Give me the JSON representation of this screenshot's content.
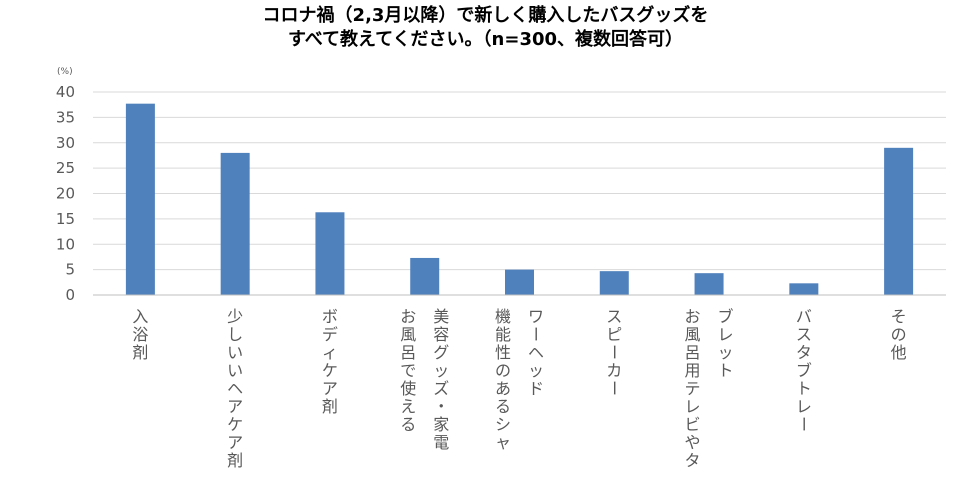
{
  "chart_data": {
    "type": "bar",
    "title_lines": [
      "コロナ禍（2,3月以降）で新しく購入したバスグッズを",
      "すべて教えてください。（n=300、複数回答可）"
    ],
    "unit_label": "(%)",
    "ylim": [
      0,
      40
    ],
    "yticks": [
      0,
      5,
      10,
      15,
      20,
      25,
      30,
      35,
      40
    ],
    "grid": true,
    "bar_color": "#4F81BD",
    "categories": [
      [
        "入浴剤"
      ],
      [
        "少しいいヘアケア剤"
      ],
      [
        "ボディケア剤"
      ],
      [
        "美容グッズ・家電",
        "お風呂で使える"
      ],
      [
        "ワーヘッド",
        "機能性のあるシャ"
      ],
      [
        "スピーカー"
      ],
      [
        "ブレット",
        "お風呂用テレビやタ"
      ],
      [
        "バスタブトレー"
      ],
      [
        "その他"
      ]
    ],
    "values": [
      37.7,
      28.0,
      16.3,
      7.3,
      5.0,
      4.7,
      4.3,
      2.3,
      29.0
    ]
  }
}
